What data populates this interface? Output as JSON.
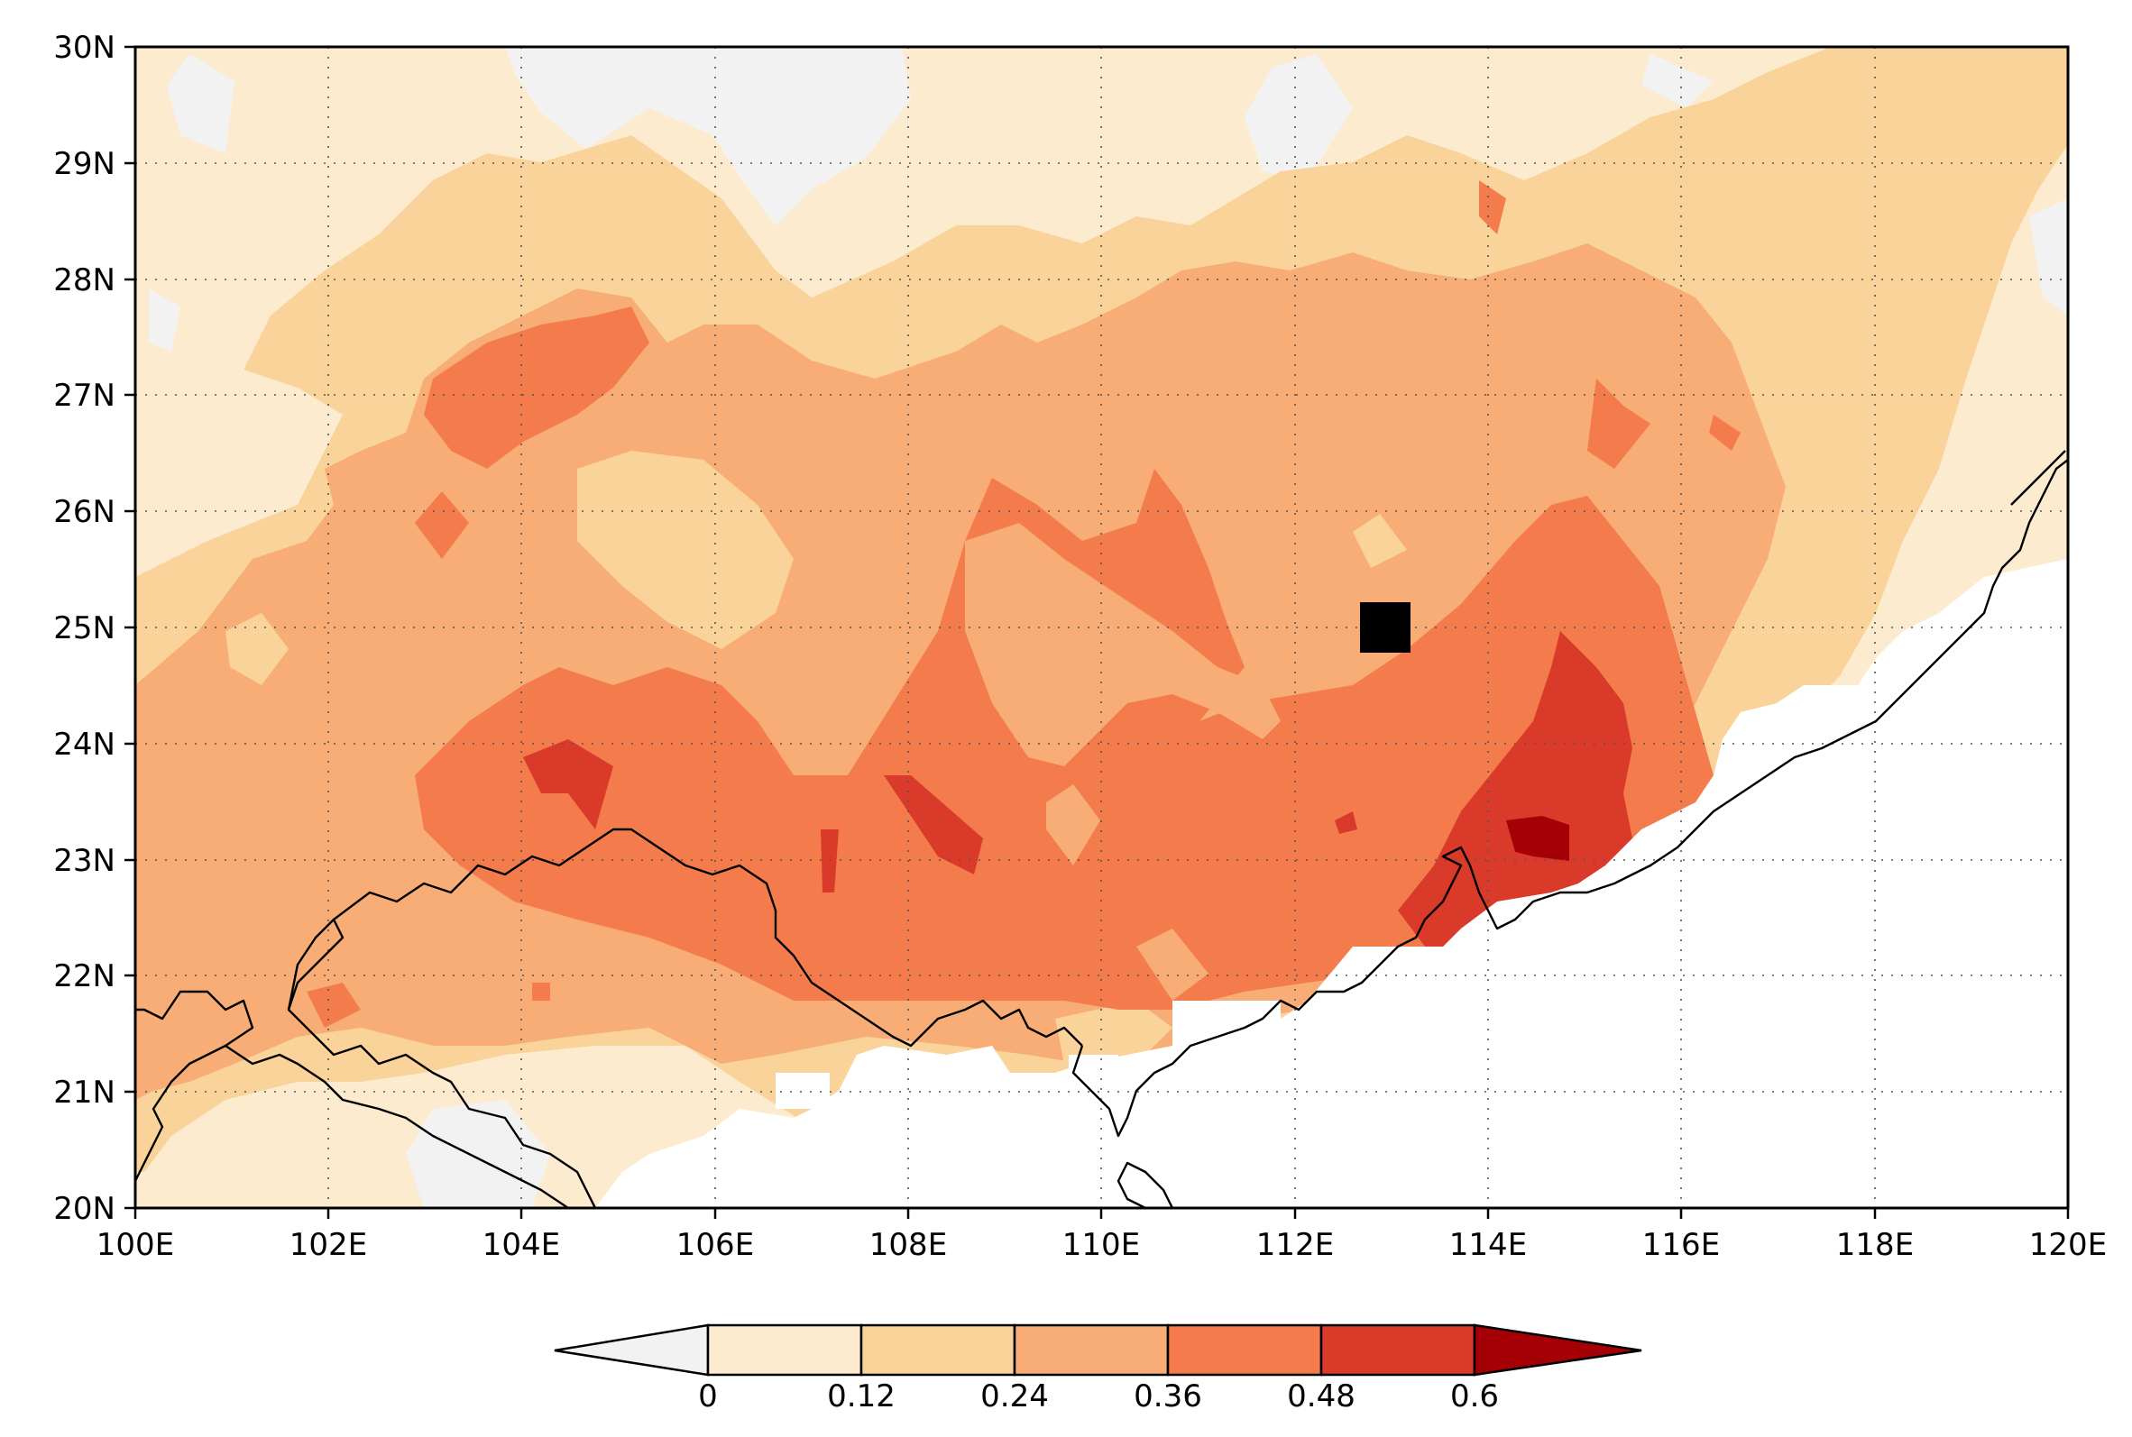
{
  "map": {
    "lat_labels": [
      "30N",
      "29N",
      "28N",
      "27N",
      "26N",
      "25N",
      "24N",
      "23N",
      "22N",
      "21N",
      "20N"
    ],
    "lon_labels": [
      "100E",
      "102E",
      "104E",
      "106E",
      "108E",
      "110E",
      "112E",
      "114E",
      "116E",
      "118E",
      "120E"
    ],
    "lat_range": [
      20,
      30
    ],
    "lon_range": [
      100,
      120
    ],
    "station_marker": {
      "lon": 113,
      "lat": 25,
      "color": "#000000"
    }
  },
  "colorbar": {
    "labels": [
      "0",
      "0.12",
      "0.24",
      "0.36",
      "0.48",
      "0.6"
    ],
    "levels": [
      0,
      0.12,
      0.24,
      0.36,
      0.48,
      0.6
    ],
    "colors": {
      "below_zero": "#f2f2f2",
      "c1": "#fdebd0",
      "c2": "#fad39a",
      "c3": "#f8ad77",
      "c4": "#f47b4b",
      "c5": "#da3a29",
      "above": "#a40006"
    }
  }
}
